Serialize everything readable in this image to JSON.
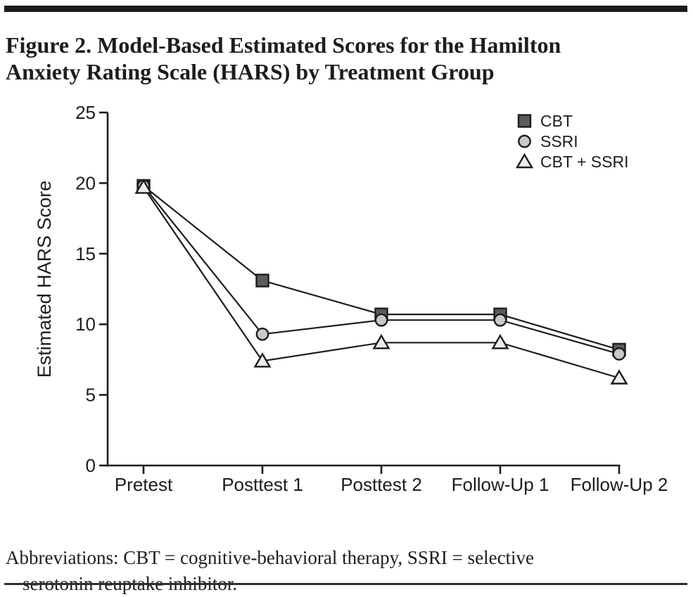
{
  "page": {
    "background": "#ffffff",
    "top_rule_color": "#1a1a1a",
    "bottom_rule_color": "#2e2e2e",
    "text_color": "#1d1d1b"
  },
  "figure": {
    "title_lines": [
      "Figure 2. Model-Based Estimated Scores for the Hamilton",
      "Anxiety Rating Scale (HARS) by Treatment Group"
    ],
    "footnote_lines": [
      "Abbreviations: CBT = cognitive-behavioral therapy, SSRI = selective",
      "serotonin reuptake inhibitor."
    ]
  },
  "chart_data": {
    "type": "line",
    "title": "",
    "xlabel": "",
    "ylabel": "Estimated HARS Score",
    "categories": [
      "Pretest",
      "Posttest 1",
      "Posttest 2",
      "Follow-Up 1",
      "Follow-Up 2"
    ],
    "series": [
      {
        "name": "CBT",
        "marker": "square",
        "fill": "#5c5c5c",
        "values": [
          19.8,
          13.1,
          10.7,
          10.7,
          8.2
        ]
      },
      {
        "name": "SSRI",
        "marker": "circle",
        "fill": "#c9c9c9",
        "values": [
          19.8,
          9.3,
          10.3,
          10.3,
          7.9
        ]
      },
      {
        "name": "CBT + SSRI",
        "marker": "triangle",
        "fill": "#ececec",
        "values": [
          19.7,
          7.4,
          8.7,
          8.7,
          6.2
        ]
      }
    ],
    "ylim": [
      0,
      25
    ],
    "yticks": [
      0,
      5,
      10,
      15,
      20,
      25
    ],
    "line_color": "#1c1c1c",
    "grid": false,
    "legend_position": "top-right"
  }
}
